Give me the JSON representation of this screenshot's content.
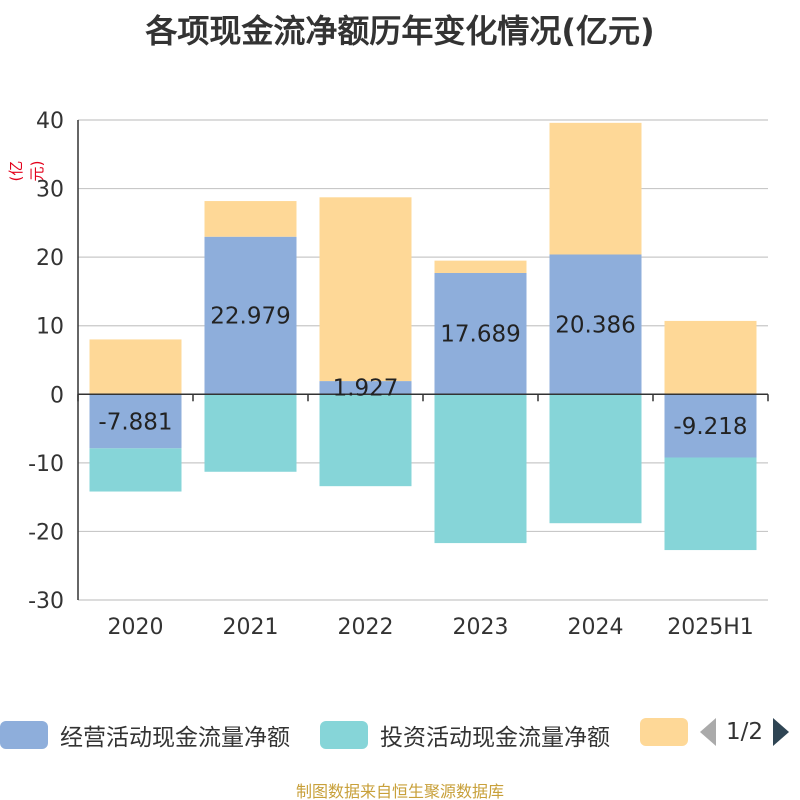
{
  "chart_data": {
    "type": "bar",
    "stacked": true,
    "title": "各项现金流净额历年变化情况(亿元)",
    "unit_label": "(亿元)",
    "categories": [
      "2020",
      "2021",
      "2022",
      "2023",
      "2024",
      "2025H1"
    ],
    "ylim": [
      -30,
      40
    ],
    "yticks": [
      -30,
      -20,
      -10,
      0,
      10,
      20,
      30,
      40
    ],
    "grid": true,
    "legend_position": "bottom",
    "series": [
      {
        "name": "经营活动现金流量净额",
        "color": "#8eaedb",
        "values": [
          -7.881,
          22.979,
          1.927,
          17.689,
          20.386,
          -9.218
        ],
        "labels": [
          "-7.881",
          "22.979",
          "1.927",
          "17.689",
          "20.386",
          "-9.218"
        ]
      },
      {
        "name": "投资活动现金流量净额",
        "color": "#86d5d8",
        "values": [
          -6.3,
          -11.3,
          -13.4,
          -21.7,
          -18.8,
          -13.5
        ]
      },
      {
        "name": "",
        "color": "#fed897",
        "values": [
          8.0,
          5.2,
          26.8,
          1.8,
          19.2,
          10.7
        ]
      }
    ]
  },
  "legend": {
    "items": [
      {
        "label": "经营活动现金流量净额",
        "color": "#8eaedb"
      },
      {
        "label": "投资活动现金流量净额",
        "color": "#86d5d8"
      },
      {
        "label": "",
        "color": "#fed897"
      }
    ],
    "pager_text": "1/2"
  },
  "footer": "制图数据来自恒生聚源数据库"
}
